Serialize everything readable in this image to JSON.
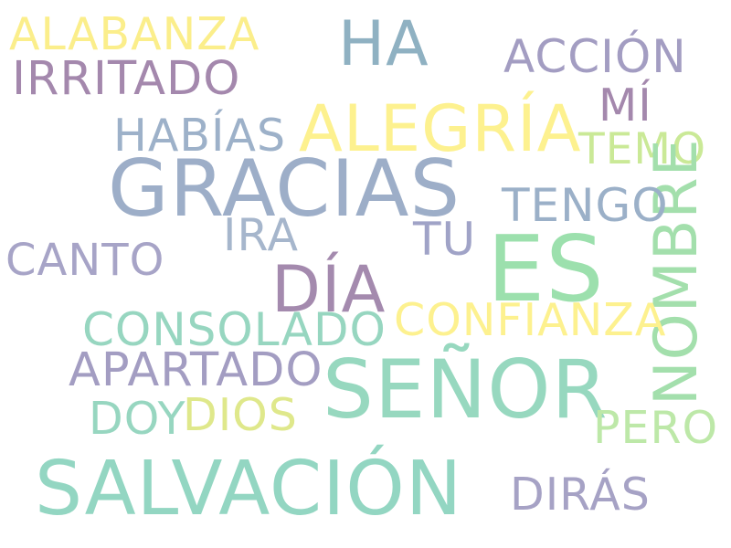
{
  "words": [
    {
      "text": "ALABANZA",
      "color": "#fbee8b"
    },
    {
      "text": "HA",
      "color": "#8fb1c2"
    },
    {
      "text": "ACCIÓN",
      "color": "#a39dc2"
    },
    {
      "text": "IRRITADO",
      "color": "#a488ad"
    },
    {
      "text": "MÍ",
      "color": "#a488ad"
    },
    {
      "text": "HABÍAS",
      "color": "#9db1c9"
    },
    {
      "text": "ALEGRÍA",
      "color": "#fdf18f"
    },
    {
      "text": "TEMO",
      "color": "#cae997"
    },
    {
      "text": "GRACIAS",
      "color": "#9daec8"
    },
    {
      "text": "NOMBRE",
      "color": "#a3dfac"
    },
    {
      "text": "TENGO",
      "color": "#9bb0c8"
    },
    {
      "text": "IRA",
      "color": "#a6b6cc"
    },
    {
      "text": "TU",
      "color": "#a0a3c7"
    },
    {
      "text": "ES",
      "color": "#9ce0ad"
    },
    {
      "text": "CANTO",
      "color": "#a7a4c7"
    },
    {
      "text": "DÍA",
      "color": "#a48aae"
    },
    {
      "text": "CONSOLADO",
      "color": "#97d6c0"
    },
    {
      "text": "CONFIANZA",
      "color": "#fdf18f"
    },
    {
      "text": "APARTADO",
      "color": "#a39dc2"
    },
    {
      "text": "SEÑOR",
      "color": "#97d8bf"
    },
    {
      "text": "DOY",
      "color": "#97d6c0"
    },
    {
      "text": "DIOS",
      "color": "#dfe88b"
    },
    {
      "text": "PERO",
      "color": "#bde8a8"
    },
    {
      "text": "SALVACIÓN",
      "color": "#93d6c2"
    },
    {
      "text": "DIRÁS",
      "color": "#a6a2c5"
    }
  ]
}
